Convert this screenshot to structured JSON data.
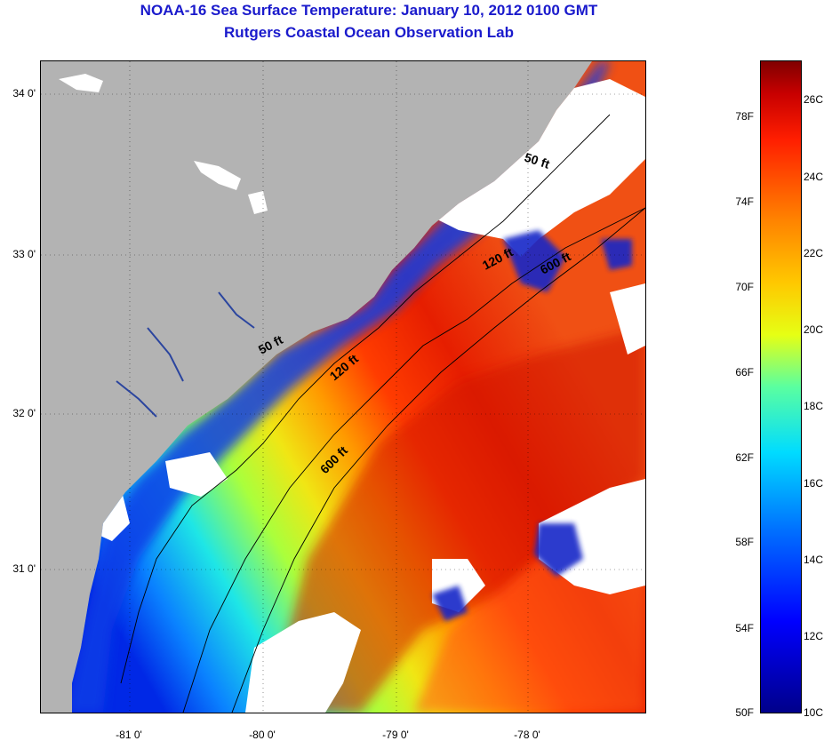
{
  "header": {
    "title": "NOAA-16 Sea Surface Temperature:  January 10, 2012 0100 GMT",
    "subtitle": "Rutgers Coastal Ocean Observation Lab"
  },
  "map": {
    "lat_labels": [
      "34 0'",
      "33 0'",
      "32 0'",
      "31 0'"
    ],
    "lon_labels": [
      "-81 0'",
      "-80 0'",
      "-79 0'",
      "-78 0'"
    ],
    "contour_labels": [
      "50 ft",
      "120 ft",
      "600 ft",
      "50 ft",
      "120 ft",
      "600 ft"
    ]
  },
  "colorbar": {
    "fahrenheit_labels": [
      "78F",
      "74F",
      "70F",
      "66F",
      "62F",
      "58F",
      "54F",
      "50F"
    ],
    "celsius_labels": [
      "26C",
      "24C",
      "22C",
      "20C",
      "18C",
      "16C",
      "14C",
      "12C",
      "10C"
    ]
  },
  "colors": {
    "land": "#b3b3b3",
    "cloud": "#ffffff",
    "title": "#1a1acc",
    "cold": "#0000cd",
    "warm": "#e61e00"
  }
}
